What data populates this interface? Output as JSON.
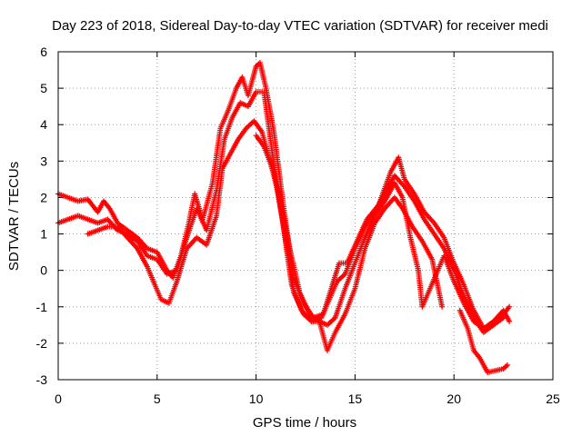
{
  "chart_data": {
    "type": "scatter",
    "title": "Day 223 of 2018, Sidereal Day-to-day VTEC variation (SDTVAR) for receiver medi",
    "xlabel": "GPS time / hours",
    "ylabel": "SDTVAR / TECUs",
    "xlim": [
      0,
      25
    ],
    "ylim": [
      -3,
      6
    ],
    "xticks": [
      0,
      5,
      10,
      15,
      20,
      25
    ],
    "yticks": [
      -3,
      -2,
      -1,
      0,
      1,
      2,
      3,
      4,
      5,
      6
    ],
    "grid": true,
    "marker": "plus",
    "color": "#ff0000",
    "series": [
      {
        "points": [
          [
            0,
            2.1
          ],
          [
            0.5,
            2.0
          ],
          [
            1.0,
            1.9
          ],
          [
            1.5,
            1.95
          ],
          [
            2.0,
            1.6
          ],
          [
            2.3,
            1.9
          ],
          [
            2.6,
            1.7
          ],
          [
            3.0,
            1.3
          ],
          [
            3.5,
            1.1
          ],
          [
            4.0,
            0.9
          ],
          [
            4.5,
            0.6
          ],
          [
            5.0,
            0.5
          ],
          [
            5.5,
            0.0
          ],
          [
            5.8,
            -0.2
          ],
          [
            6.2,
            0.4
          ],
          [
            6.6,
            1.3
          ],
          [
            6.9,
            2.1
          ],
          [
            7.3,
            1.4
          ],
          [
            7.8,
            2.4
          ],
          [
            8.2,
            3.9
          ],
          [
            8.6,
            4.4
          ],
          [
            9.0,
            5.0
          ],
          [
            9.3,
            5.3
          ],
          [
            9.6,
            4.8
          ],
          [
            10.0,
            5.6
          ],
          [
            10.2,
            5.7
          ],
          [
            10.5,
            5.0
          ],
          [
            10.9,
            3.8
          ],
          [
            11.4,
            1.7
          ],
          [
            11.9,
            -0.2
          ],
          [
            12.4,
            -0.9
          ],
          [
            12.9,
            -1.3
          ],
          [
            13.4,
            -1.2
          ],
          [
            13.8,
            -0.5
          ],
          [
            14.2,
            0.2
          ],
          [
            14.6,
            0.2
          ],
          [
            15.1,
            0.8
          ],
          [
            15.6,
            1.4
          ],
          [
            16.2,
            1.8
          ],
          [
            16.8,
            2.7
          ],
          [
            17.2,
            3.1
          ],
          [
            17.5,
            2.5
          ],
          [
            18.0,
            2.1
          ],
          [
            18.5,
            1.6
          ],
          [
            19.0,
            1.3
          ],
          [
            19.5,
            0.9
          ],
          [
            20.0,
            0.2
          ],
          [
            20.5,
            -0.4
          ],
          [
            21.0,
            -1.1
          ],
          [
            21.5,
            -1.6
          ],
          [
            22.0,
            -1.4
          ],
          [
            22.5,
            -1.2
          ],
          [
            22.8,
            -1.0
          ]
        ]
      },
      {
        "points": [
          [
            0,
            1.3
          ],
          [
            0.5,
            1.4
          ],
          [
            1.0,
            1.5
          ],
          [
            1.5,
            1.4
          ],
          [
            2.0,
            1.3
          ],
          [
            2.5,
            1.4
          ],
          [
            3.0,
            1.1
          ],
          [
            3.5,
            1.0
          ],
          [
            4.0,
            0.8
          ],
          [
            4.5,
            0.4
          ],
          [
            5.0,
            0.3
          ],
          [
            5.5,
            -0.1
          ],
          [
            6.0,
            0.0
          ],
          [
            6.5,
            0.9
          ],
          [
            7.0,
            1.7
          ],
          [
            7.5,
            1.1
          ],
          [
            8.0,
            2.2
          ],
          [
            8.4,
            3.6
          ],
          [
            8.8,
            4.2
          ],
          [
            9.2,
            4.6
          ],
          [
            9.6,
            4.5
          ],
          [
            10.0,
            4.9
          ],
          [
            10.4,
            4.9
          ],
          [
            10.8,
            3.3
          ],
          [
            11.3,
            1.5
          ],
          [
            11.8,
            -0.4
          ],
          [
            12.3,
            -1.1
          ],
          [
            12.8,
            -1.4
          ],
          [
            13.3,
            -1.3
          ],
          [
            13.7,
            -0.8
          ],
          [
            14.1,
            -0.3
          ],
          [
            14.5,
            -0.1
          ],
          [
            15.0,
            0.6
          ],
          [
            15.5,
            1.2
          ],
          [
            16.0,
            1.6
          ],
          [
            16.6,
            2.2
          ],
          [
            17.0,
            2.6
          ],
          [
            17.5,
            2.3
          ],
          [
            18.0,
            1.9
          ],
          [
            18.5,
            1.4
          ],
          [
            19.0,
            1.0
          ],
          [
            19.5,
            0.6
          ],
          [
            20.0,
            0.0
          ],
          [
            20.5,
            -0.7
          ],
          [
            21.0,
            -1.3
          ],
          [
            21.5,
            -1.7
          ],
          [
            22.0,
            -1.5
          ],
          [
            22.5,
            -1.3
          ]
        ]
      },
      {
        "points": [
          [
            1.5,
            1.0
          ],
          [
            2.0,
            1.1
          ],
          [
            2.5,
            1.2
          ],
          [
            3.0,
            1.2
          ],
          [
            3.5,
            0.9
          ],
          [
            4.0,
            0.6
          ],
          [
            4.5,
            0.1
          ],
          [
            5.2,
            -0.8
          ],
          [
            5.6,
            -0.9
          ],
          [
            6.0,
            -0.3
          ],
          [
            6.5,
            0.6
          ],
          [
            7.0,
            0.9
          ],
          [
            7.5,
            0.7
          ],
          [
            8.0,
            1.5
          ],
          [
            8.3,
            2.8
          ],
          [
            8.7,
            3.2
          ],
          [
            9.1,
            3.6
          ],
          [
            9.5,
            3.9
          ],
          [
            9.9,
            4.1
          ],
          [
            10.3,
            3.8
          ],
          [
            10.7,
            3.0
          ],
          [
            11.2,
            2.0
          ],
          [
            11.7,
            0.6
          ],
          [
            12.2,
            -0.6
          ],
          [
            12.7,
            -1.2
          ],
          [
            13.2,
            -1.4
          ],
          [
            13.6,
            -2.2
          ],
          [
            14.0,
            -1.7
          ],
          [
            14.5,
            -1.2
          ],
          [
            15.0,
            -0.5
          ],
          [
            15.5,
            0.6
          ],
          [
            16.0,
            1.3
          ],
          [
            16.5,
            1.7
          ],
          [
            17.0,
            2.0
          ],
          [
            17.4,
            1.7
          ],
          [
            17.9,
            1.2
          ],
          [
            18.4,
            0.8
          ],
          [
            18.9,
            0.3
          ],
          [
            19.4,
            -1.0
          ]
        ]
      },
      {
        "points": [
          [
            10.0,
            3.7
          ],
          [
            10.4,
            3.4
          ],
          [
            10.9,
            2.7
          ],
          [
            11.4,
            1.2
          ],
          [
            11.9,
            -0.6
          ],
          [
            12.4,
            -1.2
          ],
          [
            12.8,
            -1.4
          ],
          [
            13.2,
            -1.4
          ],
          [
            13.6,
            -1.5
          ],
          [
            14.0,
            -1.3
          ],
          [
            14.5,
            -0.5
          ],
          [
            15.0,
            0.2
          ],
          [
            15.5,
            0.9
          ],
          [
            16.0,
            1.5
          ],
          [
            16.5,
            1.9
          ],
          [
            17.0,
            2.4
          ],
          [
            17.4,
            2.0
          ],
          [
            17.8,
            0.9
          ],
          [
            18.2,
            0.0
          ],
          [
            18.4,
            -1.0
          ],
          [
            19.5,
            0.4
          ],
          [
            20.0,
            -0.3
          ],
          [
            20.5,
            -0.9
          ],
          [
            21.0,
            -1.4
          ],
          [
            21.5,
            -1.6
          ],
          [
            22.0,
            -1.4
          ],
          [
            22.5,
            -1.1
          ],
          [
            22.8,
            -1.4
          ]
        ]
      },
      {
        "points": [
          [
            20.3,
            -1.1
          ],
          [
            20.7,
            -1.6
          ],
          [
            21.0,
            -2.2
          ],
          [
            21.3,
            -2.4
          ],
          [
            21.7,
            -2.8
          ],
          [
            22.5,
            -2.7
          ],
          [
            22.7,
            -2.6
          ]
        ]
      }
    ]
  }
}
